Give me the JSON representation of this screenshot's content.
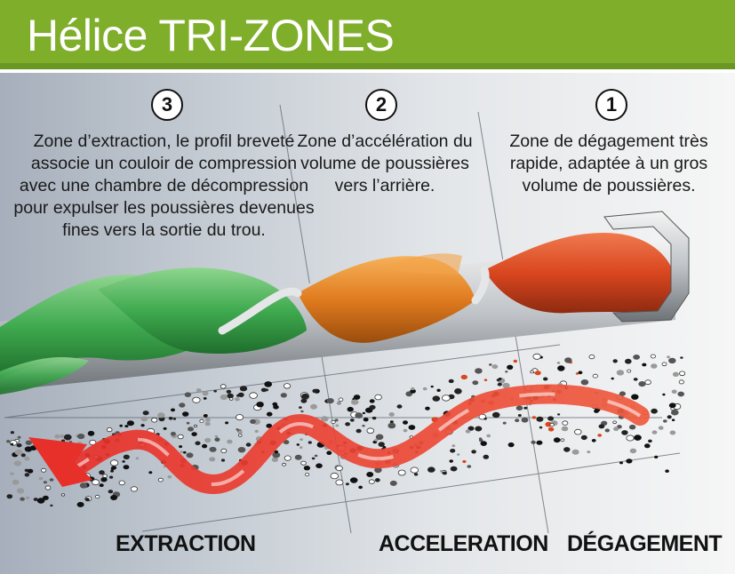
{
  "title": "Hélice TRI-ZONES",
  "zones": [
    {
      "number": "3",
      "description": "Zone d’extraction, le profil breveté associe un couloir de compression avec une chambre de décompression pour expulser les poussières devenues fines vers la sortie du trou.",
      "label": "EXTRACTION",
      "color": "#3faa4f"
    },
    {
      "number": "2",
      "description": "Zone d’accélération du volume de poussières vers l’arrière.",
      "label": "ACCELERATION",
      "color": "#e07b1f"
    },
    {
      "number": "1",
      "description": "Zone de dégagement très rapide, adaptée à un gros volume de poussières.",
      "label": "DÉGAGEMENT",
      "color": "#d9461f"
    }
  ],
  "colors": {
    "title_bar": "#7fae2b",
    "arrow": "#e8302a"
  }
}
